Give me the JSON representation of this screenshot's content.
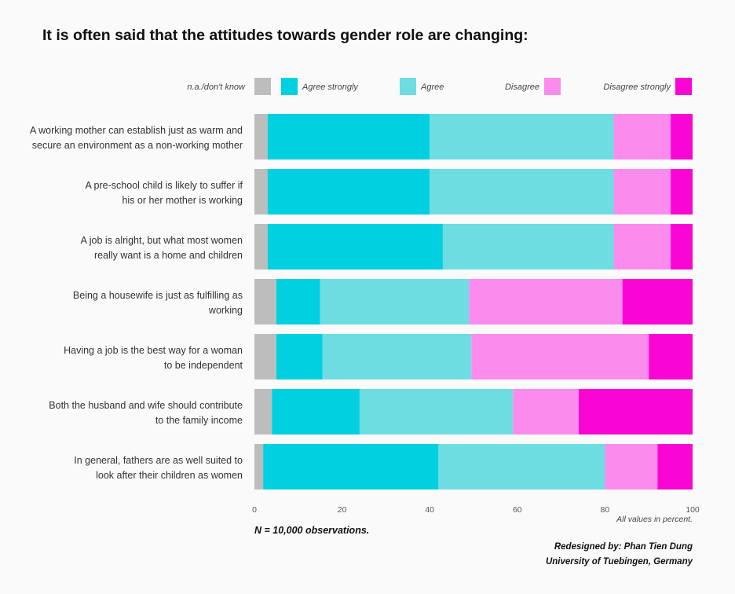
{
  "chart_data": {
    "type": "bar",
    "orientation": "horizontal",
    "stacked": true,
    "title": "It is often said that the attitudes towards gender role are changing:",
    "categories": [
      [
        "A working mother can establish just as warm and",
        "secure an environment as a non-working mother"
      ],
      [
        "A pre-school child is likely to suffer if",
        "his or her mother is working"
      ],
      [
        "A job is alright, but what most women",
        "really want is a home and children"
      ],
      [
        "Being a housewife is just as fulfilling as",
        "working"
      ],
      [
        "Having a job is the best way for a woman",
        "to be independent"
      ],
      [
        "Both the husband and wife should contribute",
        "to the family income"
      ],
      [
        "In general, fathers are as well suited to",
        "look after their children as women"
      ]
    ],
    "series": [
      {
        "name": "n.a./don't know",
        "color": "#bdbdbd",
        "values": [
          3,
          3,
          3,
          5,
          5,
          4,
          2
        ]
      },
      {
        "name": "Agree strongly",
        "color": "#00d0e0",
        "values": [
          37,
          37,
          40,
          10,
          10.5,
          20,
          40
        ]
      },
      {
        "name": "Agree",
        "color": "#6ddde2",
        "values": [
          42,
          42,
          39,
          34,
          34,
          35,
          38
        ]
      },
      {
        "name": "Disagree",
        "color": "#fb8ced",
        "values": [
          13,
          13,
          13,
          35,
          40.5,
          15,
          12
        ]
      },
      {
        "name": "Disagree strongly",
        "color": "#fa06d4",
        "values": [
          5,
          5,
          5,
          16,
          10,
          26,
          8
        ]
      }
    ],
    "xlim": [
      0,
      100
    ],
    "xticks": [
      "0",
      "20",
      "40",
      "60",
      "80",
      "100"
    ],
    "legend_position": "top",
    "grid": false
  },
  "notes": {
    "units": "All values in percent.",
    "observations": "N = 10,000 observations.",
    "credit_line1": "Redesigned by: Phan Tien Dung",
    "credit_line2": "University of Tuebingen, Germany"
  }
}
